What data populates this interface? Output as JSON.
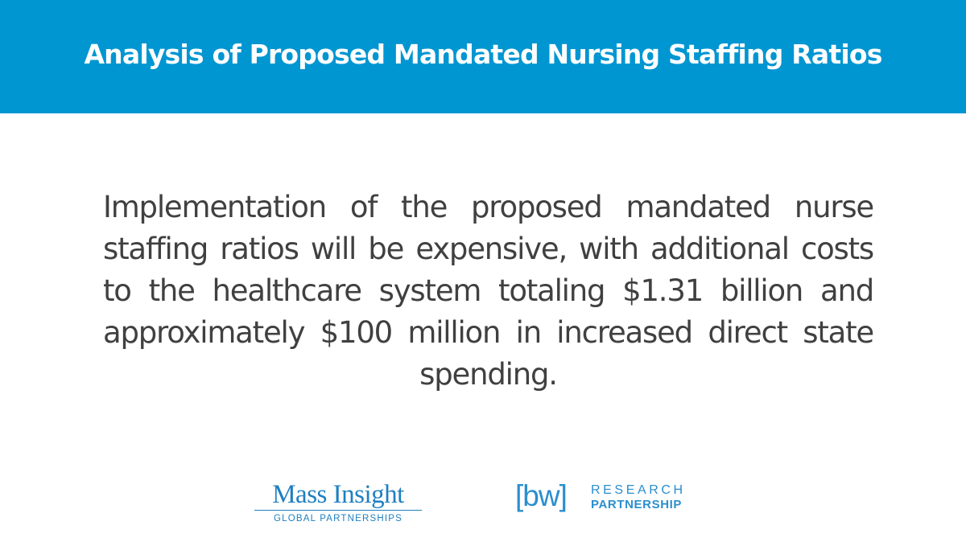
{
  "header": {
    "title": "Analysis of Proposed Mandated Nursing Staffing Ratios"
  },
  "main": {
    "paragraph": "Implementation of the proposed mandated nurse staffing ratios will be expensive, with additional costs to the healthcare system totaling $1.31 billion and approximately $100 million in increased direct state spending."
  },
  "logos": {
    "mass_insight": {
      "name": "Mass Insight",
      "subtitle": "GLOBAL PARTNERSHIPS"
    },
    "bw_research": {
      "mark": "[bw]",
      "line1": "RESEARCH",
      "line2": "PARTNERSHIP"
    }
  },
  "colors": {
    "header_band": "#0096d2",
    "header_text": "#ffffff",
    "body_text": "#404040",
    "logo_blue": "#1e7fc0"
  }
}
